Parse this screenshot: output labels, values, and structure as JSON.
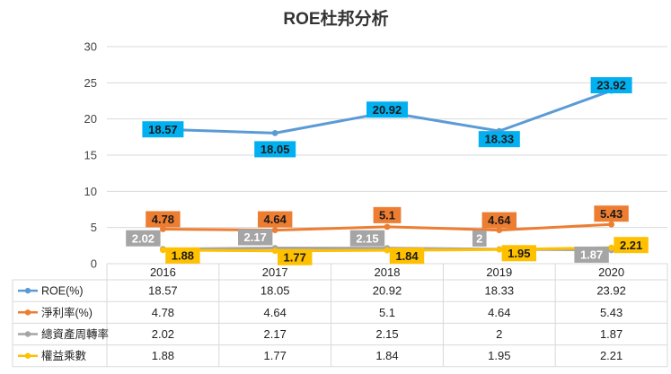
{
  "chart_data": {
    "type": "line",
    "title": "ROE杜邦分析",
    "categories": [
      "2016",
      "2017",
      "2018",
      "2019",
      "2020"
    ],
    "ylim": [
      0,
      30
    ],
    "yticks": [
      0,
      5,
      10,
      15,
      20,
      25,
      30
    ],
    "grid": true,
    "legend": "data-table",
    "series": [
      {
        "name": "ROE(%)",
        "color": "#5B9BD5",
        "label_bg": "#00B0F0",
        "label_color": "#1a1a1a",
        "values": [
          18.57,
          18.05,
          20.92,
          18.33,
          23.92
        ],
        "labels": [
          "18.57",
          "18.05",
          "20.92",
          "18.33",
          "23.92"
        ]
      },
      {
        "name": "淨利率(%)",
        "color": "#ED7D31",
        "label_bg": "#ED7D31",
        "label_color": "#1a1a1a",
        "values": [
          4.78,
          4.64,
          5.1,
          4.64,
          5.43
        ],
        "labels": [
          "4.78",
          "4.64",
          "5.1",
          "4.64",
          "5.43"
        ]
      },
      {
        "name": "總資產周轉率",
        "color": "#A5A5A5",
        "label_bg": "#A5A5A5",
        "label_color": "#ffffff",
        "values": [
          2.02,
          2.17,
          2.15,
          2,
          1.87
        ],
        "labels": [
          "2.02",
          "2.17",
          "2.15",
          "2",
          "1.87"
        ]
      },
      {
        "name": "權益乘數",
        "color": "#FFC000",
        "label_bg": "#FFC000",
        "label_color": "#1a1a1a",
        "values": [
          1.88,
          1.77,
          1.84,
          1.95,
          2.21
        ],
        "labels": [
          "1.88",
          "1.77",
          "1.84",
          "1.95",
          "2.21"
        ]
      }
    ]
  }
}
